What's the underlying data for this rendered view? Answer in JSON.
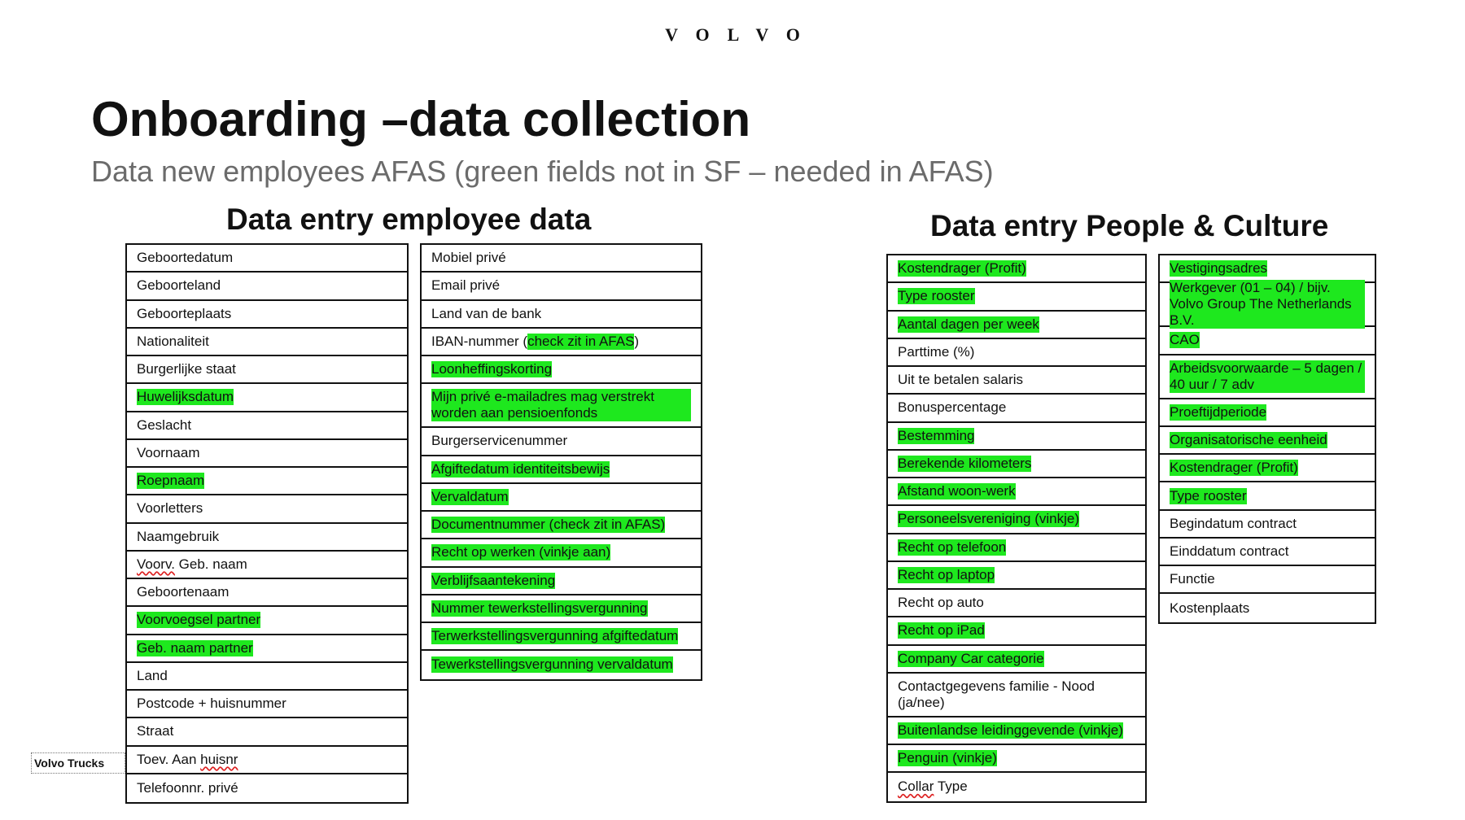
{
  "brand": {
    "logo_text": "VOLVO"
  },
  "title": "Onboarding –data collection",
  "subtitle": "Data new employees AFAS (green fields not in SF – needed in AFAS)",
  "colors": {
    "highlight": "#1ee81e",
    "subtitle": "#6b6b6b",
    "border": "#111111"
  },
  "footer_label": "Volvo Trucks",
  "left_section": {
    "heading": "Data entry employee data",
    "table1": [
      {
        "label": "Geboortedatum",
        "highlight": false
      },
      {
        "label": "Geboorteland",
        "highlight": false
      },
      {
        "label": "Geboorteplaats",
        "highlight": false
      },
      {
        "label": "Nationaliteit",
        "highlight": false
      },
      {
        "label": "Burgerlijke staat",
        "highlight": false
      },
      {
        "label": "Huwelijksdatum",
        "highlight": true
      },
      {
        "label": "Geslacht",
        "highlight": false
      },
      {
        "label": "Voornaam",
        "highlight": false
      },
      {
        "label": "Roepnaam",
        "highlight": true
      },
      {
        "label": "Voorletters",
        "highlight": false
      },
      {
        "label": "Naamgebruik",
        "highlight": false
      },
      {
        "label": "Voorv. Geb. naam",
        "highlight": false
      },
      {
        "label": "Geboortenaam",
        "highlight": false
      },
      {
        "label": "Voorvoegsel partner",
        "highlight": true
      },
      {
        "label": "Geb. naam partner",
        "highlight": true
      },
      {
        "label": "Land",
        "highlight": false
      },
      {
        "label": "Postcode + huisnummer",
        "highlight": false
      },
      {
        "label": "Straat",
        "highlight": false
      },
      {
        "label": "Toev. Aan huisnr",
        "highlight": false
      },
      {
        "label": "Telefoonnr. privé",
        "highlight": false
      }
    ],
    "table2": [
      {
        "label": "Mobiel privé",
        "highlight": false
      },
      {
        "label": "Email privé",
        "highlight": false
      },
      {
        "label": "Land van de bank",
        "highlight": false
      },
      {
        "label": "IBAN-nummer (",
        "label_hl": "check zit in AFAS",
        "label_end": ")",
        "highlight": false
      },
      {
        "label": "Loonheffingskorting",
        "highlight": true
      },
      {
        "label": "Mijn privé e-mailadres mag verstrekt worden aan pensioenfonds",
        "highlight": true,
        "double": true
      },
      {
        "label": "Burgerservicenummer",
        "highlight": false
      },
      {
        "label": "Afgiftedatum identiteitsbewijs",
        "highlight": true
      },
      {
        "label": "Vervaldatum",
        "highlight": true
      },
      {
        "label": "Documentnummer (check zit in AFAS)",
        "highlight": true
      },
      {
        "label": "Recht op werken (vinkje aan)",
        "highlight": true
      },
      {
        "label": "Verblijfsaantekening",
        "highlight": true
      },
      {
        "label": "Nummer tewerkstellingsvergunning",
        "highlight": true
      },
      {
        "label": "Terwerkstellingsvergunning afgiftedatum",
        "highlight": true
      },
      {
        "label": "Tewerkstellingsvergunning vervaldatum",
        "highlight": true
      }
    ]
  },
  "right_section": {
    "heading": "Data entry People & Culture",
    "table3": [
      {
        "label": "Kostendrager (Profit)",
        "highlight": true
      },
      {
        "label": "Type rooster",
        "highlight": true
      },
      {
        "label": "Aantal dagen per week",
        "highlight": true
      },
      {
        "label": "Parttime (%)",
        "highlight": false
      },
      {
        "label": "Uit te betalen salaris",
        "highlight": false
      },
      {
        "label": "Bonuspercentage",
        "highlight": false
      },
      {
        "label": "Bestemming",
        "highlight": true
      },
      {
        "label": "Berekende kilometers",
        "highlight": true
      },
      {
        "label": "Afstand woon-werk",
        "highlight": true
      },
      {
        "label": "Personeelsvereniging (vinkje)",
        "highlight": true
      },
      {
        "label": "Recht op telefoon",
        "highlight": true
      },
      {
        "label": "Recht op laptop",
        "highlight": true
      },
      {
        "label": "Recht op auto",
        "highlight": false
      },
      {
        "label": "Recht op iPad",
        "highlight": true
      },
      {
        "label": "Company Car categorie",
        "highlight": true
      },
      {
        "label": "Contactgegevens familie - Nood (ja/nee)",
        "highlight": false,
        "double": true
      },
      {
        "label": "Buitenlandse leidinggevende (vinkje)",
        "highlight": true
      },
      {
        "label": "Penguin (vinkje)",
        "highlight": true
      },
      {
        "label": "Collar Type",
        "highlight": false
      }
    ],
    "table4": [
      {
        "label": "Vestigingsadres",
        "highlight": true
      },
      {
        "label": "Werkgever (01 – 04) / bijv. Volvo Group The Netherlands B.V.",
        "highlight": true,
        "double": true
      },
      {
        "label": "CAO",
        "highlight": true
      },
      {
        "label": "Arbeidsvoorwaarde – 5 dagen / 40 uur / 7 adv",
        "highlight": true,
        "double": true
      },
      {
        "label": "Proeftijdperiode",
        "highlight": true
      },
      {
        "label": "Organisatorische eenheid",
        "highlight": true
      },
      {
        "label": "Kostendrager (Profit)",
        "highlight": true
      },
      {
        "label": "Type rooster",
        "highlight": true
      },
      {
        "label": "Begindatum contract",
        "highlight": false
      },
      {
        "label": "Einddatum contract",
        "highlight": false
      },
      {
        "label": "Functie",
        "highlight": false
      },
      {
        "label": "Kostenplaats",
        "highlight": false
      }
    ]
  }
}
